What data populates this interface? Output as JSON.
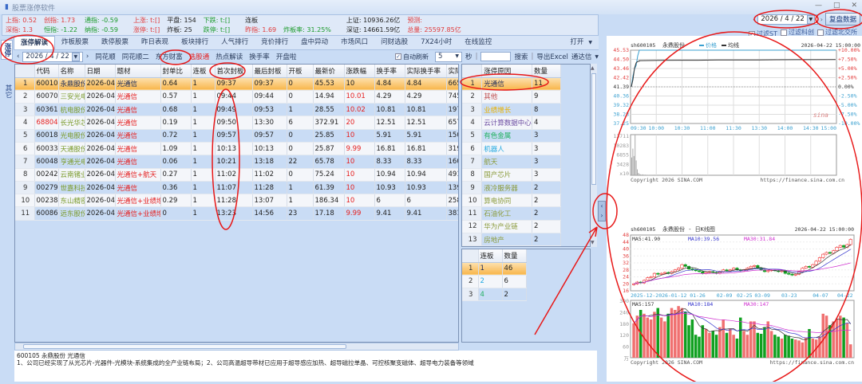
{
  "app": {
    "title": "股票涨停软件",
    "window_controls": [
      "—",
      "□",
      "✕"
    ]
  },
  "info": {
    "sh_idx": "上指: 0.52",
    "cy_idx": "创指: 1.73",
    "tong_idx": "通指: -0.59",
    "sz_idx": "深指: 1.3",
    "heng_idx": "恒指: -1.22",
    "na_idx": "纳指: -0.59",
    "up": "上涨: t:[]",
    "flat": "平盘: 154",
    "down": "下跌: t:[]",
    "limit_up": "涨停: t:[]",
    "broken": "炸板: 25",
    "limit_down": "跌停: t:[]",
    "lianban": "连板",
    "prev": "昨指: 1.69",
    "broken_rate": "炸板率: 31.25%",
    "sh_amount": "上证: 10936.26亿",
    "forecast": "预测:",
    "sz_amount": "深证: 14661.59亿",
    "total": "总量: 25597.85亿"
  },
  "topright": {
    "date": "2026 / 4 / 22",
    "replay_button": "复盘数据",
    "filters": [
      {
        "label": "过滤ST",
        "checked": true
      },
      {
        "label": "过滤科创",
        "checked": false
      },
      {
        "label": "过滤北交所",
        "checked": false
      }
    ]
  },
  "sidebar": {
    "tabs": [
      {
        "label": "涨停",
        "selected": true
      },
      {
        "label": "其它",
        "selected": false
      }
    ]
  },
  "tabs": [
    {
      "label": "涨停解读",
      "selected": true
    },
    {
      "label": "炸板股票"
    },
    {
      "label": "跌停股票"
    },
    {
      "label": "昨日表现"
    },
    {
      "label": "板块排行"
    },
    {
      "label": "人气排行"
    },
    {
      "label": "竞价排行"
    },
    {
      "label": "盘中异动"
    },
    {
      "label": "市场风口"
    },
    {
      "label": "问财选股"
    },
    {
      "label": "7X24小时"
    },
    {
      "label": "在线监控"
    }
  ],
  "open_menu": "打开",
  "subbar": {
    "date": "2026 / 4 / 22",
    "sources": [
      "同花顺",
      "同花顺二",
      "东方财富",
      "选股通",
      "热点解读",
      "换手率",
      "开盘啦"
    ],
    "active_source": "选股通",
    "auto_refresh": "自动刷新",
    "refresh_value": "5",
    "seconds": "秒",
    "search_placeholder": "",
    "search": "搜索",
    "export": "导出Excel",
    "notify": "通达信"
  },
  "main_table": {
    "columns": [
      "",
      "代码",
      "名称",
      "日期",
      "题材",
      "封单比",
      "连板",
      "首次封板",
      "最后封板",
      "开板",
      "最新价",
      "涨跌幅",
      "换手率",
      "实际换手率",
      "实际"
    ],
    "rows": [
      [
        "1",
        "600105",
        "永鼎股份",
        "2026-04-22",
        "光通信",
        "0.64",
        "1",
        "09:37",
        "09:37",
        "0",
        "45.53",
        "10",
        "4.84",
        "4.84",
        "665."
      ],
      [
        "2",
        "600703",
        "三安光电",
        "2026-04-22",
        "光通信",
        "0.57",
        "1",
        "09:44",
        "09:44",
        "0",
        "14.94",
        "10.01",
        "4.29",
        "4.29",
        "745."
      ],
      [
        "3",
        "603618",
        "杭电股份",
        "2026-04-22",
        "光通信",
        "0.68",
        "1",
        "09:49",
        "09:53",
        "1",
        "28.55",
        "10.02",
        "10.81",
        "10.81",
        "197."
      ],
      [
        "4",
        "688048",
        "长光华芯",
        "2026-04-22",
        "光通信",
        "0.19",
        "1",
        "09:50",
        "13:30",
        "6",
        "372.91",
        "20",
        "12.51",
        "12.51",
        "657."
      ],
      [
        "5",
        "600184",
        "光电股份",
        "2026-04-22",
        "光通信",
        "0.72",
        "1",
        "09:57",
        "09:57",
        "0",
        "25.85",
        "10",
        "5.91",
        "5.91",
        "150."
      ],
      [
        "6",
        "600330",
        "天通股份",
        "2026-04-22",
        "光通信",
        "1.09",
        "1",
        "10:13",
        "10:13",
        "0",
        "25.87",
        "9.99",
        "16.81",
        "16.81",
        "319."
      ],
      [
        "7",
        "600487",
        "亨通光电",
        "2026-04-22",
        "光通信",
        "0.06",
        "1",
        "10:21",
        "13:18",
        "22",
        "65.78",
        "10",
        "8.33",
        "8.33",
        "1608"
      ],
      [
        "8",
        "002428",
        "云南锗业",
        "2026-04-22",
        "光通信+航天",
        "0.27",
        "1",
        "11:02",
        "11:02",
        "0",
        "75.24",
        "10",
        "10.94",
        "10.94",
        "491."
      ],
      [
        "9",
        "002796",
        "世嘉科技",
        "2026-04-22",
        "光通信",
        "0.36",
        "1",
        "11:07",
        "11:28",
        "1",
        "61.39",
        "10",
        "10.93",
        "10.93",
        "139."
      ],
      [
        "10",
        "002384",
        "东山精密",
        "2026-04-22",
        "光通信+业绩增长",
        "0.29",
        "1",
        "11:28",
        "13:07",
        "1",
        "186.34",
        "10",
        "6",
        "6",
        "2583"
      ],
      [
        "11",
        "600869",
        "远东股份",
        "2026-04-22",
        "光通信+业绩增长",
        "0",
        "1",
        "13:23",
        "14:56",
        "23",
        "17.18",
        "9.99",
        "9.41",
        "9.41",
        "381."
      ]
    ]
  },
  "reason_table": {
    "columns": [
      "",
      "涨停原因",
      "数量"
    ],
    "rows": [
      {
        "i": "1",
        "reason": "光通信",
        "count": "11",
        "color": "#1a2a5a"
      },
      {
        "i": "2",
        "reason": "其他",
        "count": "9",
        "color": "#c05050"
      },
      {
        "i": "3",
        "reason": "业绩增长",
        "count": "8",
        "color": "#e8b000"
      },
      {
        "i": "4",
        "reason": "云计算数据中心",
        "count": "4",
        "color": "#6a4aa0"
      },
      {
        "i": "5",
        "reason": "有色金属",
        "count": "3",
        "color": "#20b060"
      },
      {
        "i": "6",
        "reason": "机器人",
        "count": "3",
        "color": "#20a8e0"
      },
      {
        "i": "7",
        "reason": "航天",
        "count": "3",
        "color": "#8a9a3a"
      },
      {
        "i": "8",
        "reason": "国产芯片",
        "count": "3",
        "color": "#8a9a3a"
      },
      {
        "i": "9",
        "reason": "液冷服务器",
        "count": "2",
        "color": "#8a9a3a"
      },
      {
        "i": "10",
        "reason": "算电协同",
        "count": "2",
        "color": "#8a9a3a"
      },
      {
        "i": "11",
        "reason": "石油化工",
        "count": "2",
        "color": "#8a9a3a"
      },
      {
        "i": "12",
        "reason": "华为产业链",
        "count": "2",
        "color": "#8a9a3a"
      },
      {
        "i": "13",
        "reason": "房地产",
        "count": "2",
        "color": "#8a9a3a"
      }
    ]
  },
  "board_table": {
    "columns": [
      "",
      "连板",
      "数量"
    ],
    "rows": [
      {
        "i": "1",
        "board": "1",
        "count": "46",
        "color": "#1a2a5a"
      },
      {
        "i": "2",
        "board": "2",
        "count": "6",
        "color": "#20a8e0"
      },
      {
        "i": "3",
        "board": "4",
        "count": "2",
        "color": "#20b060"
      }
    ]
  },
  "description": {
    "line1": "600105 永鼎股份    光通信",
    "line2": "1、公司已经实现了从光芯片-光器件-光模块-系统集成的全产业链布局；2、公司高温超导带材已应用于超导感应加热、超导磁拉单晶、可控核聚变磁体、超导电力装备等领域"
  },
  "intraday_chart": {
    "code": "sh600105",
    "name": "永鼎股份",
    "legend_price": "价格",
    "legend_avg": "均线",
    "datetime": "2026-04-22 15:00:00",
    "left_ticks": [
      "45.53",
      "44.50",
      "43.46",
      "42.42",
      "41.39",
      "40.36",
      "39.32",
      "38.28",
      "37.25"
    ],
    "right_ticks": [
      "+10.00%",
      "+7.50%",
      "+5.00%",
      "+2.50%",
      "0.00%",
      "-2.50%",
      "-5.00%",
      "-7.50%",
      "-10.00%"
    ],
    "time_ticks": [
      "09:30",
      "10:00",
      "10:30",
      "11:00",
      "11:30",
      "13:30",
      "14:00",
      "14:30",
      "15:00"
    ],
    "vol_ticks": [
      "13711",
      "10283",
      "6855",
      "3428",
      "x10"
    ],
    "price": [
      41.39,
      42.6,
      43.4,
      43.8,
      44.9,
      45.53,
      45.53,
      45.53,
      45.53,
      45.53,
      45.53,
      45.53,
      45.53,
      45.53,
      45.53,
      45.53,
      45.53
    ],
    "avg": [
      41.39,
      42.2,
      43.5,
      44.1,
      44.25,
      44.3,
      44.35,
      44.38,
      44.4,
      44.4,
      44.42,
      44.42,
      44.43,
      44.45,
      44.46,
      44.46,
      44.47
    ],
    "volume": [
      6000,
      9000,
      6500,
      13711,
      5000,
      2000,
      800,
      400,
      300,
      200,
      300,
      150,
      200,
      150,
      100,
      120,
      100,
      90,
      80,
      100
    ],
    "copyright": "Copyright 2026 SINA.COM",
    "url": "https://finance.sina.com.cn",
    "watermark": "sina"
  },
  "kline_chart": {
    "code": "sh600105",
    "title": "永鼎股份 - 日K线图",
    "datetime": "2026-04-22 15:00:00",
    "ma5": "MA5:41.90",
    "ma10": "MA10:39.56",
    "ma30": "MA30:31.84",
    "y_ticks": [
      "48",
      "44",
      "40",
      "36",
      "32",
      "28",
      "24",
      "20",
      "16"
    ],
    "x_ticks": [
      "2025-12-2026-01-12",
      "01-26",
      "02-09",
      "02-25",
      "03-09",
      "03-23",
      "04-07",
      "04-22"
    ],
    "vol_ticks": [
      "300",
      "240",
      "180",
      "120",
      "60",
      "万"
    ],
    "vma5": "MA5:157",
    "vma10": "MA10:184",
    "vma30": "MA30:147",
    "closes": [
      20,
      21,
      20.5,
      22,
      23.5,
      24,
      26,
      25.5,
      26,
      26.5,
      26,
      27,
      28,
      29,
      31,
      30,
      28.5,
      28,
      27.5,
      27,
      26,
      26.5,
      27,
      26.5,
      26,
      27,
      28,
      27.5,
      28,
      29,
      28,
      27.5,
      28,
      29,
      30,
      30.5,
      29,
      28,
      27,
      27.5,
      28,
      27.5,
      27,
      27.5,
      26,
      25.5,
      25,
      25.5,
      27,
      29,
      30,
      29.5,
      31,
      33,
      35,
      37,
      38,
      37.5,
      39,
      41,
      42,
      41,
      42.5,
      45.5
    ],
    "volumes": [
      180,
      220,
      250,
      230,
      210,
      200,
      240,
      260,
      210,
      190,
      230,
      260,
      250,
      270,
      260,
      240,
      170,
      200,
      120,
      110,
      170,
      150,
      130,
      140,
      120,
      160,
      200,
      130,
      150,
      120,
      100,
      210,
      140,
      120,
      190,
      190,
      130,
      125,
      160,
      190,
      140,
      120,
      110,
      100,
      120,
      115,
      100,
      95,
      90,
      80,
      105,
      150,
      100,
      95,
      110,
      230,
      220,
      170,
      190,
      200,
      220,
      210,
      180,
      70
    ],
    "copyright": "Copyright 2026 SINA.COM",
    "url": "https://finance.sina.com.cn"
  },
  "colors": {
    "accent_red": "#e23a3a",
    "selected_row": "#f8b64c",
    "panel_bg": "#c9dcf5",
    "annotation": "#e81818"
  }
}
